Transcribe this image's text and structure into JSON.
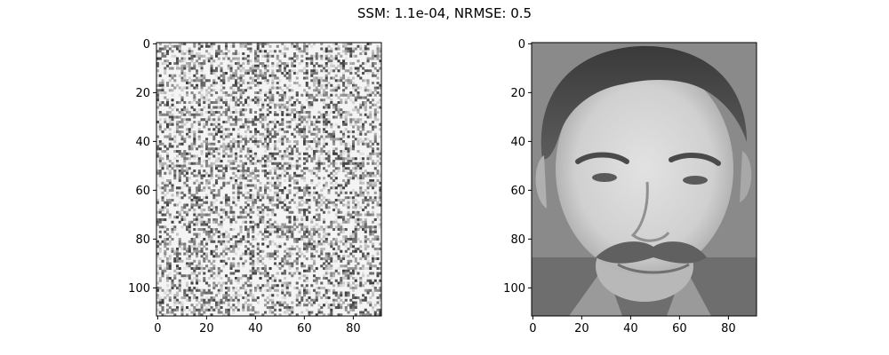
{
  "figure": {
    "suptitle": "SSM: 1.1e-04, NRMSE: 0.5"
  },
  "chart_data": [
    {
      "type": "heatmap",
      "name": "noise-image",
      "colormap": "gray",
      "grid": false,
      "image_shape": [
        112,
        92
      ],
      "xlim": [
        -0.5,
        91.5
      ],
      "ylim": [
        111.5,
        -0.5
      ],
      "xticks": [
        0,
        20,
        40,
        60,
        80
      ],
      "yticks": [
        0,
        20,
        40,
        60,
        80,
        100
      ],
      "x_tick_labels": [
        "0",
        "20",
        "40",
        "60",
        "80"
      ],
      "y_tick_labels": [
        "0",
        "20",
        "40",
        "60",
        "80",
        "100"
      ],
      "content": "random pixel noise, mostly light with sparse dark pixels"
    },
    {
      "type": "heatmap",
      "name": "face-image",
      "colormap": "gray",
      "grid": false,
      "image_shape": [
        112,
        92
      ],
      "xlim": [
        -0.5,
        91.5
      ],
      "ylim": [
        111.5,
        -0.5
      ],
      "xticks": [
        0,
        20,
        40,
        60,
        80
      ],
      "yticks": [
        0,
        20,
        40,
        60,
        80,
        100
      ],
      "x_tick_labels": [
        "0",
        "20",
        "40",
        "60",
        "80"
      ],
      "y_tick_labels": [
        "0",
        "20",
        "40",
        "60",
        "80",
        "100"
      ],
      "content": "grayscale photograph of a man's face with a mustache"
    }
  ]
}
